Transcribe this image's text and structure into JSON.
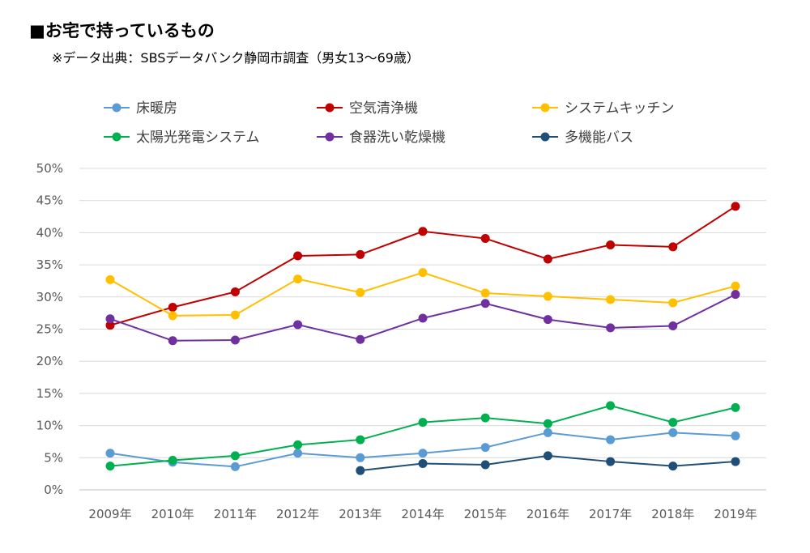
{
  "title": "■お宅で持っているもの",
  "subtitle": "※データ出典：SBSデータバンク静岡市調査（男女13～69歳）",
  "chart_data": {
    "type": "line",
    "x": [
      "2009年",
      "2010年",
      "2011年",
      "2012年",
      "2013年",
      "2014年",
      "2015年",
      "2016年",
      "2017年",
      "2018年",
      "2019年"
    ],
    "ylim": [
      0,
      50
    ],
    "yticks": [
      0,
      5,
      10,
      15,
      20,
      25,
      30,
      35,
      40,
      45,
      50
    ],
    "ytick_labels": [
      "0%",
      "5%",
      "10%",
      "15%",
      "20%",
      "25%",
      "30%",
      "35%",
      "40%",
      "45%",
      "50%"
    ],
    "grid": true,
    "legend_position": "top",
    "series": [
      {
        "name": "床暖房",
        "color": "#5b9bd5",
        "values": [
          5.7,
          4.3,
          3.6,
          5.7,
          5.0,
          5.7,
          6.6,
          8.9,
          7.8,
          8.9,
          8.4
        ]
      },
      {
        "name": "空気清浄機",
        "color": "#c00000",
        "values": [
          25.6,
          28.4,
          30.8,
          36.4,
          36.6,
          40.2,
          39.1,
          35.9,
          38.1,
          37.8,
          44.1
        ]
      },
      {
        "name": "システムキッチン",
        "color": "#ffc000",
        "values": [
          32.7,
          27.1,
          27.2,
          32.8,
          30.7,
          33.8,
          30.6,
          30.1,
          29.6,
          29.1,
          31.7
        ]
      },
      {
        "name": "太陽光発電システム",
        "color": "#00b050",
        "values": [
          3.7,
          4.6,
          5.3,
          7.0,
          7.8,
          10.5,
          11.2,
          10.3,
          13.1,
          10.5,
          12.8
        ]
      },
      {
        "name": "食器洗い乾燥機",
        "color": "#7030a0",
        "values": [
          26.6,
          23.2,
          23.3,
          25.7,
          23.4,
          26.7,
          29.0,
          26.5,
          25.2,
          25.5,
          30.4
        ]
      },
      {
        "name": "多機能バス",
        "color": "#1f4e79",
        "values": [
          null,
          null,
          null,
          null,
          3.0,
          4.1,
          3.9,
          5.3,
          4.4,
          3.7,
          4.4
        ]
      }
    ]
  }
}
